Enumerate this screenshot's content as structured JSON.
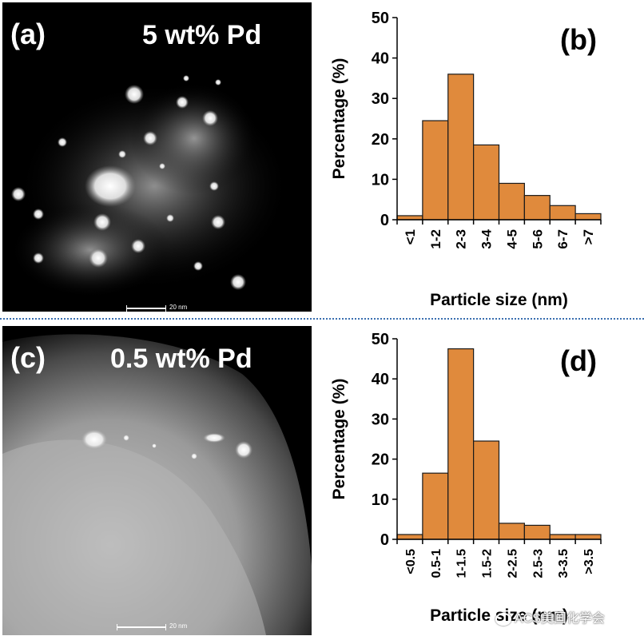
{
  "panels": {
    "a": {
      "label": "(a)",
      "title": "5 wt% Pd",
      "scale": "20 nm"
    },
    "c": {
      "label": "(c)",
      "title": "0.5 wt% Pd",
      "scale": "20 nm"
    }
  },
  "watermark": "ACS美国化学会",
  "colors": {
    "bar_fill": "#e08a3c",
    "bar_stroke": "#1a1a1a",
    "divider": "#3a6fb0"
  },
  "chart_data": [
    {
      "id": "b",
      "panel_label": "(b)",
      "type": "bar",
      "categories": [
        "<1",
        "1-2",
        "2-3",
        "3-4",
        "4-5",
        "5-6",
        "6-7",
        ">7"
      ],
      "values": [
        1,
        24.5,
        36,
        18.5,
        9,
        6,
        3.5,
        1.5
      ],
      "xlabel": "Particle size (nm)",
      "ylabel": "Percentage (%)",
      "ylim": [
        0,
        50
      ],
      "yticks": [
        0,
        10,
        20,
        30,
        40,
        50
      ],
      "grid": false
    },
    {
      "id": "d",
      "panel_label": "(d)",
      "type": "bar",
      "categories": [
        "<0.5",
        "0.5-1",
        "1-1.5",
        "1.5-2",
        "2-2.5",
        "2.5-3",
        "3-3.5",
        ">3.5"
      ],
      "values": [
        1.2,
        16.5,
        47.5,
        24.5,
        4,
        3.5,
        1.2,
        1.2
      ],
      "xlabel": "Particle size (nm)",
      "ylabel": "Percentage (%)",
      "ylim": [
        0,
        50
      ],
      "yticks": [
        0,
        10,
        20,
        30,
        40,
        50
      ],
      "grid": false
    }
  ]
}
